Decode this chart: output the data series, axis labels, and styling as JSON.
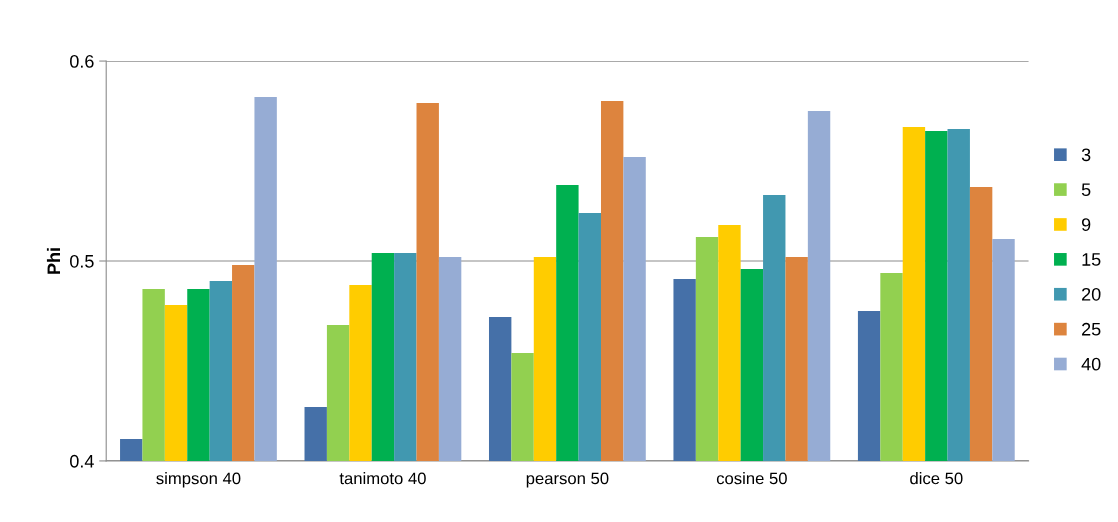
{
  "chart_data": {
    "type": "bar",
    "ylabel": "Phi",
    "categories": [
      "simpson 40",
      "tanimoto 40",
      "pearson 50",
      "cosine 50",
      "dice 50"
    ],
    "series": [
      {
        "name": "3",
        "color": "#4570a8",
        "values": [
          0.411,
          0.427,
          0.472,
          0.491,
          0.475
        ]
      },
      {
        "name": "5",
        "color": "#92d050",
        "values": [
          0.486,
          0.468,
          0.454,
          0.512,
          0.494
        ]
      },
      {
        "name": "9",
        "color": "#ffcc00",
        "values": [
          0.478,
          0.488,
          0.502,
          0.518,
          0.567
        ]
      },
      {
        "name": "15",
        "color": "#00b050",
        "values": [
          0.486,
          0.504,
          0.538,
          0.496,
          0.565
        ]
      },
      {
        "name": "20",
        "color": "#4198b0",
        "values": [
          0.49,
          0.504,
          0.524,
          0.533,
          0.566
        ]
      },
      {
        "name": "25",
        "color": "#dd843e",
        "values": [
          0.498,
          0.579,
          0.58,
          0.502,
          0.537
        ]
      },
      {
        "name": "40",
        "color": "#96acd4",
        "values": [
          0.582,
          0.502,
          0.552,
          0.575,
          0.511
        ]
      }
    ],
    "ylim": [
      0.4,
      0.6
    ],
    "yticks": [
      0.4,
      0.5,
      0.6
    ],
    "grid": "y",
    "legend": "right"
  }
}
